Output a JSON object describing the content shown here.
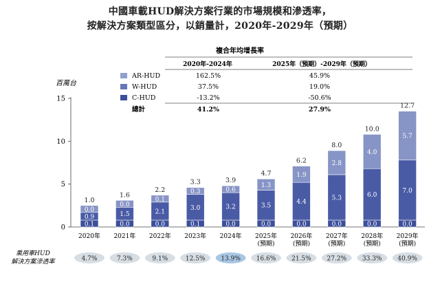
{
  "titles": {
    "line1": "中國車載HUD解決方案行業的市場規模和滲透率，",
    "line2": "按解決方案類型區分，以銷量計，2020年-2029年（預期）"
  },
  "table": {
    "header_group": "複合年均增長率",
    "col1": "2020年-2024年",
    "col2": "2025年（預期）-2029年（預期）",
    "rows": [
      {
        "label": "AR-HUD",
        "v1": "162.5%",
        "v2": "45.9%",
        "color": "#8fa0cf"
      },
      {
        "label": "W-HUD",
        "v1": "37.5%",
        "v2": "19.0%",
        "color": "#6677b5"
      },
      {
        "label": "C-HUD",
        "v1": "-13.2%",
        "v2": "-50.6%",
        "color": "#3d4f9a"
      }
    ],
    "total": {
      "label": "總計",
      "v1": "41.2%",
      "v2": "27.9%"
    }
  },
  "penetration": {
    "label_line1": "乘用車HUD",
    "label_line2": "解決方案滲透率",
    "values": [
      "4.7%",
      "7.3%",
      "9.1%",
      "12.5%",
      "13.9%",
      "16.6%",
      "21.5%",
      "27.2%",
      "33.3%",
      "40.9%"
    ]
  },
  "chart_data": {
    "type": "bar",
    "stacked": true,
    "ylabel": "百萬台",
    "ylim": [
      0,
      15
    ],
    "yticks": [
      "0",
      "5",
      "10",
      "15"
    ],
    "categories": [
      [
        "2020年"
      ],
      [
        "2021年"
      ],
      [
        "2022年"
      ],
      [
        "2023年"
      ],
      [
        "2024年"
      ],
      [
        "2025年",
        "(預期)"
      ],
      [
        "2026年",
        "(預期)"
      ],
      [
        "2027年",
        "(預期)"
      ],
      [
        "2028年",
        "(預期)"
      ],
      [
        "2029年",
        "(預期)"
      ]
    ],
    "series": [
      {
        "name": "C-HUD",
        "color": "#3d4f9a",
        "values": [
          0.1,
          0.0,
          0.0,
          0.1,
          0.0,
          0.0,
          0.0,
          0.0,
          0.0,
          0.0
        ],
        "labels": [
          "0.1",
          "0.0",
          "0.0",
          "0.1",
          "0.0",
          "0.0",
          "0.0",
          "0.0",
          "0.0",
          "0.0"
        ]
      },
      {
        "name": "W-HUD",
        "color": "#4a5ba6",
        "values": [
          0.9,
          1.5,
          2.1,
          3.0,
          3.2,
          3.5,
          4.4,
          5.3,
          6.0,
          7.0
        ],
        "labels": [
          "0.9",
          "1.5",
          "2.1",
          "3.0",
          "3.2",
          "3.5",
          "4.4",
          "5.3",
          "6.0",
          "7.0"
        ]
      },
      {
        "name": "AR-HUD",
        "color": "#8794c6",
        "values": [
          0.0,
          0.0,
          0.1,
          0.3,
          0.6,
          1.3,
          1.9,
          2.8,
          4.0,
          5.7
        ],
        "labels": [
          "0.0",
          "0.0",
          "0.1",
          "0.3",
          "0.6",
          "1.3",
          "1.9",
          "2.8",
          "4.0",
          "5.7"
        ]
      }
    ],
    "totals": [
      "1.0",
      "1.6",
      "2.2",
      "3.3",
      "3.9",
      "4.7",
      "6.2",
      "8.0",
      "10.0",
      "12.7"
    ],
    "total_values": [
      1.0,
      1.6,
      2.2,
      3.3,
      3.9,
      4.7,
      6.2,
      8.0,
      10.0,
      12.7
    ]
  }
}
